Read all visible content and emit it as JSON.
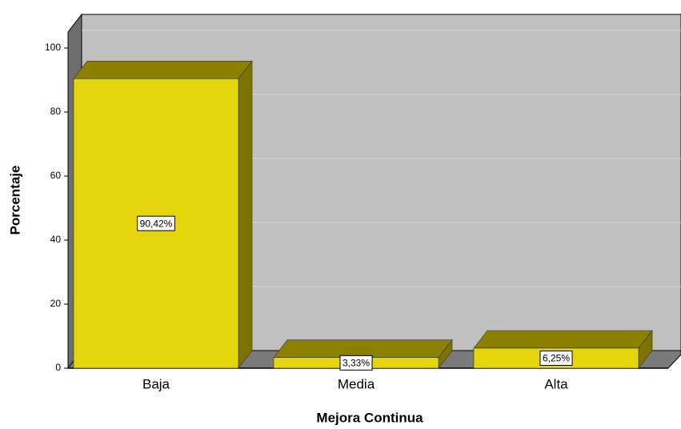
{
  "chart_data": {
    "type": "bar3d",
    "categories": [
      "Baja",
      "Media",
      "Alta"
    ],
    "values": [
      90.42,
      3.33,
      6.25
    ],
    "value_labels": [
      "90,42%",
      "3,33%",
      "6,25%"
    ],
    "color": "#e5d50c",
    "xlabel": "Mejora Continua",
    "ylabel": "Porcentaje",
    "ylim": [
      0,
      105
    ],
    "yticks": [
      0,
      20,
      40,
      60,
      80,
      100
    ],
    "grid": true
  }
}
